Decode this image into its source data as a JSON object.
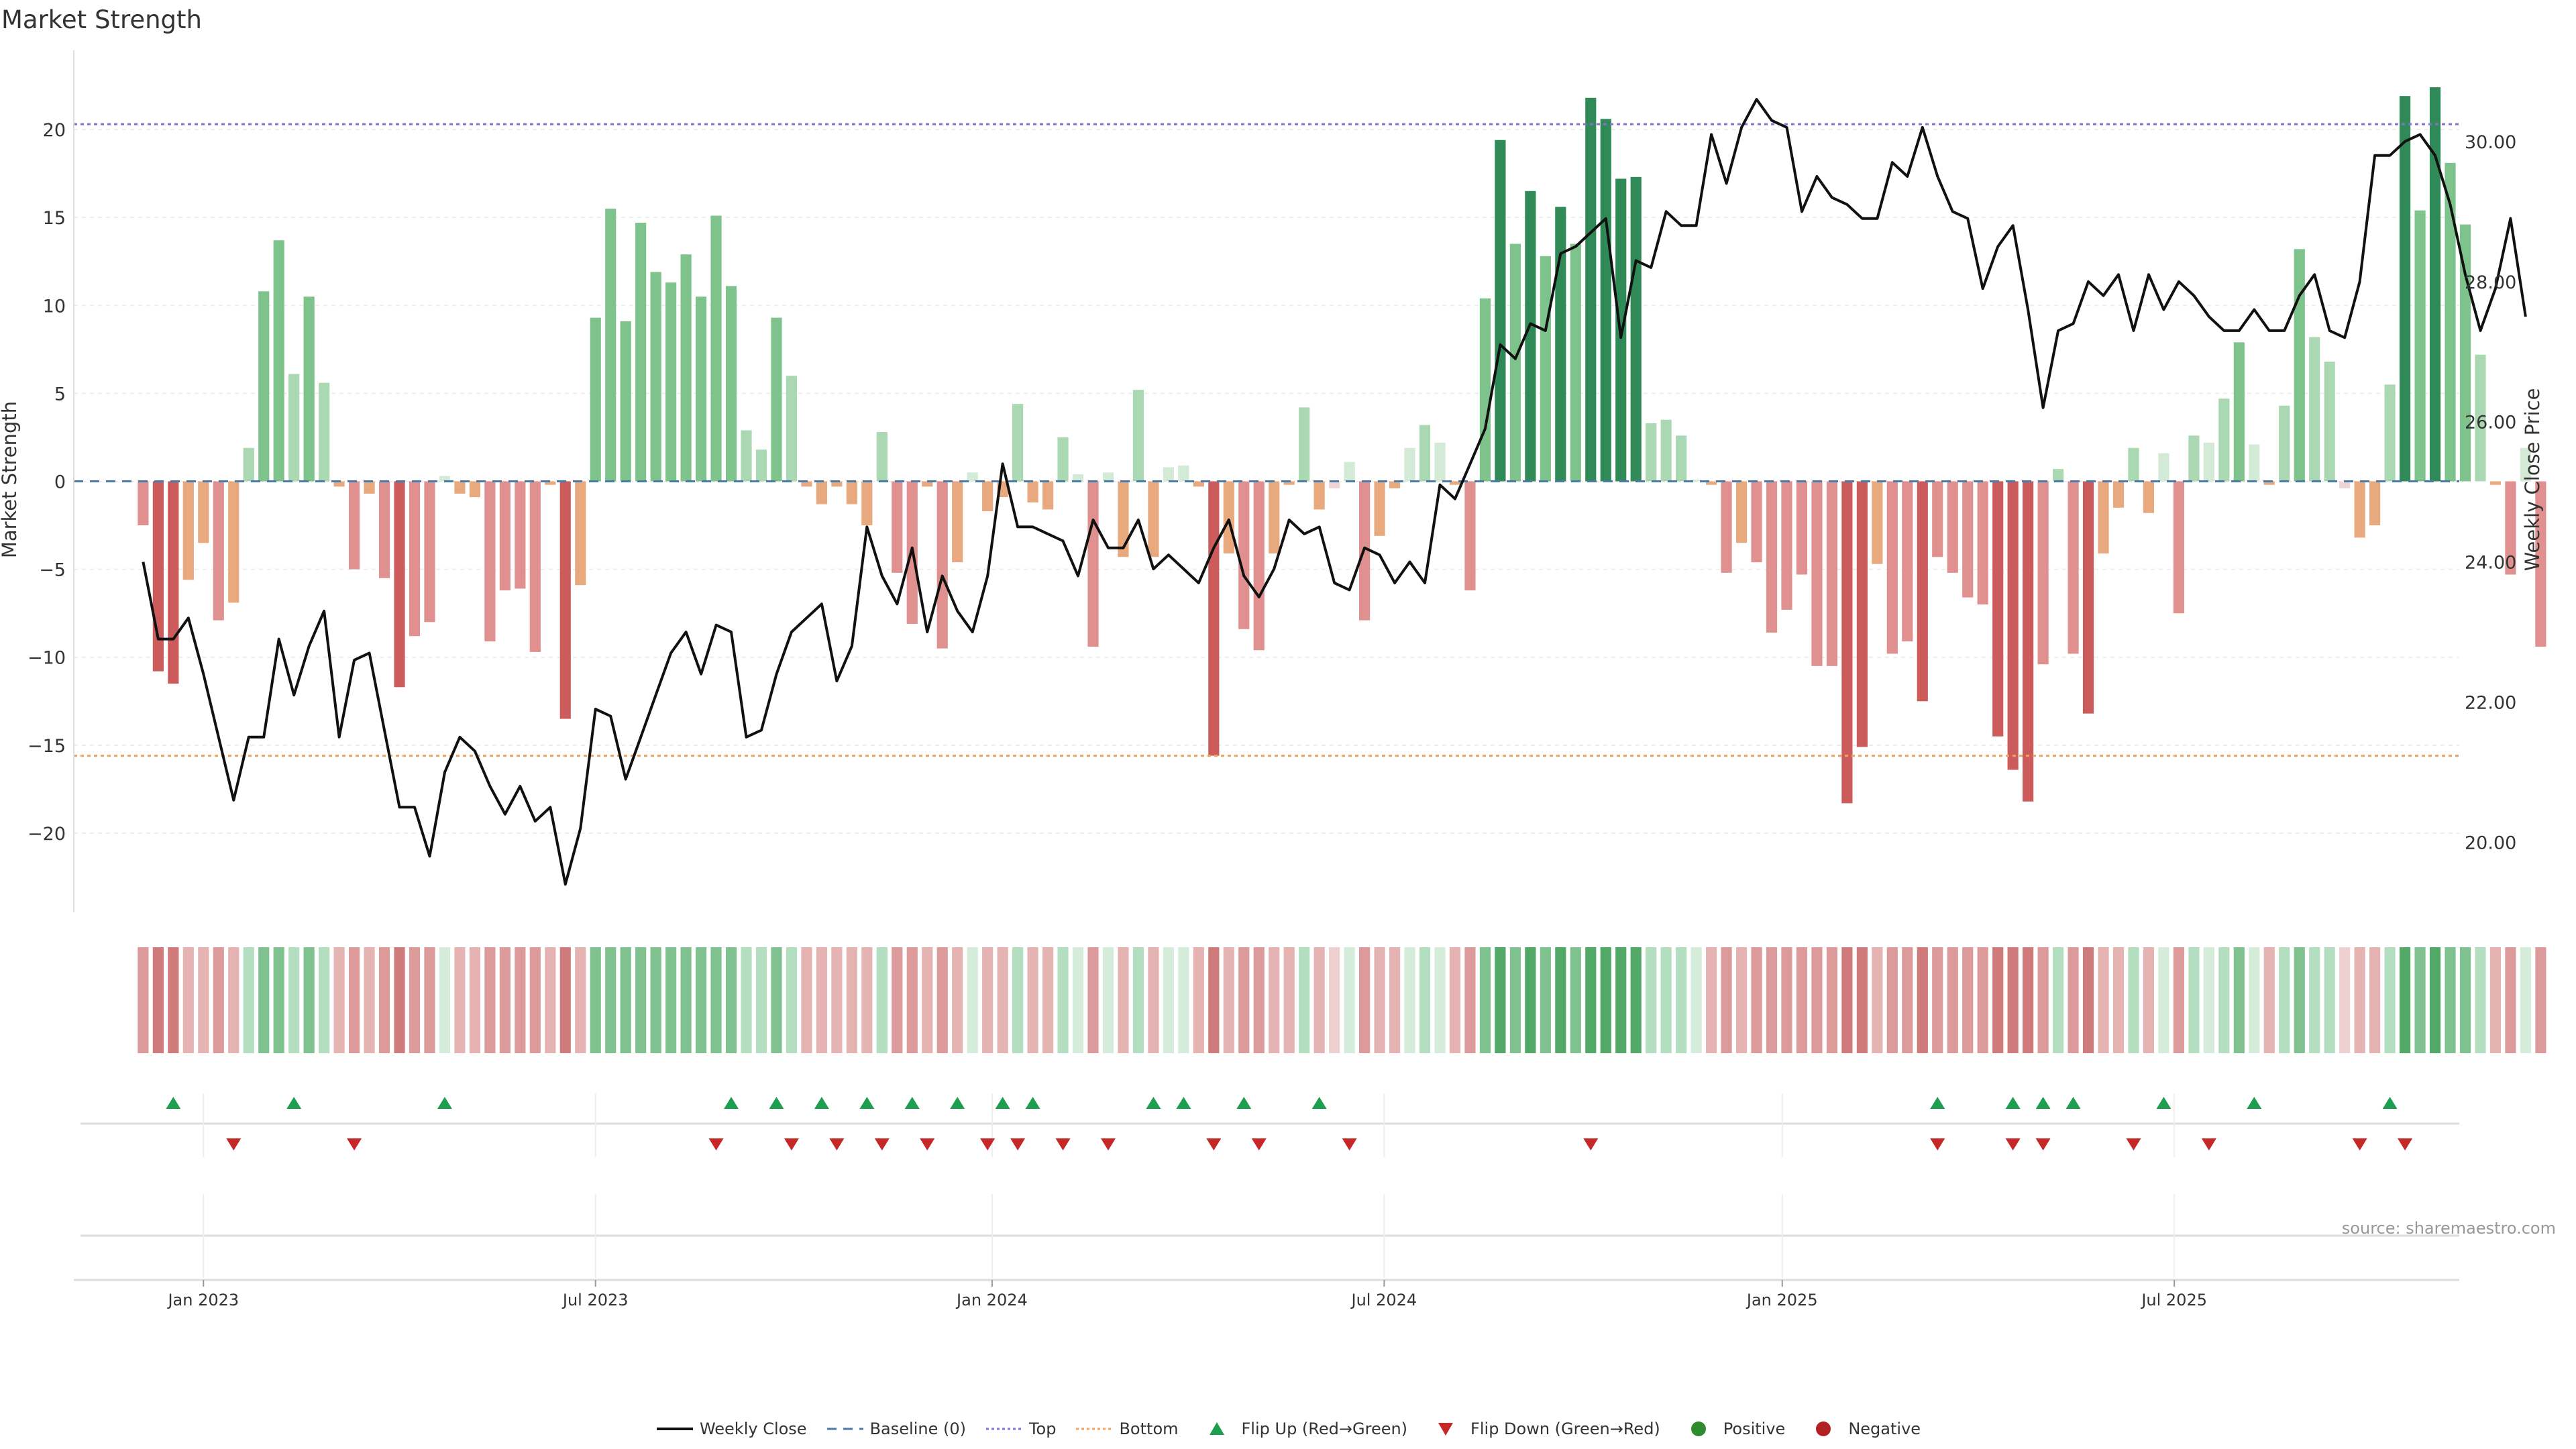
{
  "chart_data": {
    "type": "bar",
    "title": "Market Strength",
    "ylabel": "Market Strength",
    "y2label": "Weekly Close Price",
    "ylim": [
      -24.5,
      24.5
    ],
    "y2lim": [
      19.0,
      31.3
    ],
    "yticks": [
      -20,
      -15,
      -10,
      -5,
      0,
      5,
      10,
      15,
      20
    ],
    "yticklabels": [
      "−20",
      "−15",
      "−10",
      "−5",
      "0",
      "5",
      "10",
      "15",
      "20"
    ],
    "y2ticks": [
      20,
      22,
      24,
      26,
      28,
      30
    ],
    "y2ticklabels": [
      "20.00",
      "22.00",
      "24.00",
      "26.00",
      "28.00",
      "30.00"
    ],
    "top_line": 20.3,
    "bottom_line": -15.6,
    "x_start_week": -4.6,
    "x_end_week": 153.6,
    "xticks": [
      {
        "label": "Jan 2023",
        "week": 4
      },
      {
        "label": "Jul 2023",
        "week": 30
      },
      {
        "label": "Jan 2024",
        "week": 56.3
      },
      {
        "label": "Jul 2024",
        "week": 82.3
      },
      {
        "label": "Jan 2025",
        "week": 108.7
      },
      {
        "label": "Jul 2025",
        "week": 134.7
      }
    ],
    "strength": [
      -2.5,
      -10.8,
      -11.5,
      -5.6,
      -3.5,
      -7.9,
      -6.9,
      1.9,
      10.8,
      13.7,
      6.1,
      10.5,
      5.6,
      -0.3,
      -5.0,
      -0.7,
      -5.5,
      -11.7,
      -8.8,
      -8.0,
      0.3,
      -0.7,
      -0.9,
      -9.1,
      -6.2,
      -6.1,
      -9.7,
      -0.2,
      -13.5,
      -5.9,
      9.3,
      15.5,
      9.1,
      14.7,
      11.9,
      11.3,
      12.9,
      10.5,
      15.1,
      11.1,
      2.9,
      1.8,
      9.3,
      6.0,
      -0.3,
      -1.3,
      -0.3,
      -1.3,
      -2.5,
      2.8,
      -5.2,
      -8.1,
      -0.3,
      -9.5,
      -4.6,
      0.5,
      -1.7,
      -0.9,
      4.4,
      -1.2,
      -1.6,
      2.5,
      0.4,
      -9.4,
      0.5,
      -4.3,
      5.2,
      -4.3,
      0.8,
      0.9,
      -0.3,
      -15.6,
      -4.1,
      -8.4,
      -9.6,
      -4.1,
      -0.2,
      4.2,
      -1.6,
      -0.4,
      1.1,
      -7.9,
      -3.1,
      -0.4,
      1.9,
      3.2,
      2.2,
      -0.2,
      -6.2,
      10.4,
      19.4,
      13.5,
      16.5,
      12.8,
      15.6,
      13.5,
      21.8,
      20.6,
      17.2,
      17.3,
      3.3,
      3.5,
      2.6,
      0.1,
      -0.2,
      -5.2,
      -3.5,
      -4.6,
      -8.6,
      -7.3,
      -5.3,
      -10.5,
      -10.5,
      -18.3,
      -15.1,
      -4.7,
      -9.8,
      -9.1,
      -12.5,
      -4.3,
      -5.2,
      -6.6,
      -7.0,
      -14.5,
      -16.4,
      -18.2,
      -10.4,
      0.7,
      -9.8,
      -13.2,
      -4.1,
      -1.5,
      1.9,
      -1.8,
      1.6,
      -7.5,
      2.6,
      2.2,
      4.7,
      7.9,
      2.1,
      -0.2,
      4.3,
      13.2,
      8.2,
      6.8,
      -0.4,
      -3.2,
      -2.5,
      5.5,
      21.9,
      15.4,
      22.4,
      18.1,
      14.6,
      7.2,
      -0.2,
      -5.3,
      1.9,
      -9.4
    ],
    "shade": [
      2,
      3,
      3,
      1,
      1,
      2,
      1,
      1,
      2,
      2,
      1,
      2,
      1,
      1,
      2,
      1,
      2,
      3,
      2,
      2,
      0,
      1,
      1,
      2,
      2,
      2,
      2,
      1,
      3,
      1,
      2,
      2,
      2,
      2,
      2,
      2,
      2,
      2,
      2,
      2,
      1,
      1,
      2,
      1,
      1,
      1,
      1,
      1,
      1,
      1,
      2,
      2,
      1,
      2,
      1,
      0,
      1,
      1,
      1,
      1,
      1,
      1,
      0,
      2,
      0,
      1,
      1,
      1,
      0,
      0,
      1,
      3,
      1,
      2,
      2,
      1,
      1,
      1,
      1,
      0,
      0,
      2,
      1,
      1,
      0,
      1,
      0,
      1,
      2,
      2,
      3,
      2,
      3,
      2,
      3,
      2,
      3,
      3,
      3,
      3,
      1,
      1,
      1,
      0,
      1,
      2,
      1,
      2,
      2,
      2,
      2,
      2,
      2,
      3,
      3,
      1,
      2,
      2,
      3,
      2,
      2,
      2,
      2,
      3,
      3,
      3,
      2,
      1,
      2,
      3,
      1,
      1,
      1,
      1,
      0,
      2,
      1,
      0,
      1,
      2,
      0,
      1,
      1,
      2,
      1,
      1,
      0,
      1,
      1,
      1,
      3,
      2,
      3,
      2,
      2,
      1,
      1,
      2,
      0,
      2
    ],
    "close": [
      24.0,
      22.9,
      22.9,
      23.2,
      22.4,
      21.5,
      20.6,
      21.5,
      21.5,
      22.9,
      22.1,
      22.8,
      23.3,
      21.5,
      22.6,
      22.7,
      21.6,
      20.5,
      20.5,
      19.8,
      21.0,
      21.5,
      21.3,
      20.8,
      20.4,
      20.8,
      20.3,
      20.5,
      19.4,
      20.2,
      21.9,
      21.8,
      20.9,
      21.5,
      22.1,
      22.7,
      23.0,
      22.4,
      23.1,
      23.0,
      21.5,
      21.6,
      22.4,
      23.0,
      23.2,
      23.4,
      22.3,
      22.8,
      24.5,
      23.8,
      23.4,
      24.2,
      23.0,
      23.8,
      23.3,
      23.0,
      23.8,
      25.4,
      24.5,
      24.5,
      24.4,
      24.3,
      23.8,
      24.6,
      24.2,
      24.2,
      24.6,
      23.9,
      24.1,
      23.9,
      23.7,
      24.2,
      24.6,
      23.8,
      23.5,
      23.9,
      24.6,
      24.4,
      24.5,
      23.7,
      23.6,
      24.2,
      24.1,
      23.7,
      24.0,
      23.7,
      25.1,
      24.9,
      25.4,
      25.9,
      27.1,
      26.9,
      27.4,
      27.3,
      28.4,
      28.5,
      28.7,
      28.9,
      27.2,
      28.3,
      28.2,
      29.0,
      28.8,
      28.8,
      30.1,
      29.4,
      30.2,
      30.6,
      30.3,
      30.2,
      29.0,
      29.5,
      29.2,
      29.1,
      28.9,
      28.9,
      29.7,
      29.5,
      30.2,
      29.5,
      29.0,
      28.9,
      27.9,
      28.5,
      28.8,
      27.6,
      26.2,
      27.3,
      27.4,
      28.0,
      27.8,
      28.1,
      27.3,
      28.1,
      27.6,
      28.0,
      27.8,
      27.5,
      27.3,
      27.3,
      27.6,
      27.3,
      27.3,
      27.8,
      28.1,
      27.3,
      27.2,
      28.0,
      29.8,
      29.8,
      30.0,
      30.1,
      29.8,
      29.1,
      28.1,
      27.3,
      27.9,
      28.9,
      27.5
    ],
    "flip_up_weeks": [
      2,
      10,
      20,
      39,
      42,
      45,
      48,
      51,
      54,
      57,
      59,
      67,
      69,
      73,
      78,
      119,
      124,
      126,
      128,
      134,
      140,
      149
    ],
    "flip_down_weeks": [
      6,
      14,
      38,
      43,
      46,
      49,
      52,
      56,
      58,
      61,
      64,
      71,
      74,
      80,
      96,
      119,
      124,
      126,
      132,
      137,
      147,
      150
    ],
    "legend": [
      {
        "label": "Weekly Close",
        "kind": "line",
        "color": "#111111"
      },
      {
        "label": "Baseline (0)",
        "kind": "dash",
        "color": "#4a7aa6"
      },
      {
        "label": "Top",
        "kind": "dot",
        "color": "#8a6fd1"
      },
      {
        "label": "Bottom",
        "kind": "dot",
        "color": "#f0a35e"
      },
      {
        "label": "Flip Up (Red→Green)",
        "kind": "up",
        "color": "#1e9e4f"
      },
      {
        "label": "Flip Down (Green→Red)",
        "kind": "down",
        "color": "#c62828"
      },
      {
        "label": "Positive",
        "kind": "circle",
        "color": "#2e8b2e"
      },
      {
        "label": "Negative",
        "kind": "circle",
        "color": "#b22222"
      }
    ]
  },
  "source_text": "source: sharemaestro.com",
  "colors": {
    "pos": [
      "#d2ead6",
      "#a9d8b2",
      "#7fc38c",
      "#2f8a57"
    ],
    "neg": [
      "#f0d3d3",
      "#e8a97f",
      "#e0908f",
      "#cc5c5c"
    ],
    "strip_pos": [
      "#d4ecd9",
      "#b4dec0",
      "#7fc28f",
      "#52a866"
    ],
    "strip_neg": [
      "#efd0d0",
      "#e6b3b3",
      "#dc9a9a",
      "#cf7b7b"
    ],
    "price_line": "#111111",
    "top_line": "#8a6fd1",
    "bottom_line": "#f0a35e",
    "baseline": "#4a7aa6",
    "up_marker": "#1e9e4f",
    "down_marker": "#c62828"
  }
}
